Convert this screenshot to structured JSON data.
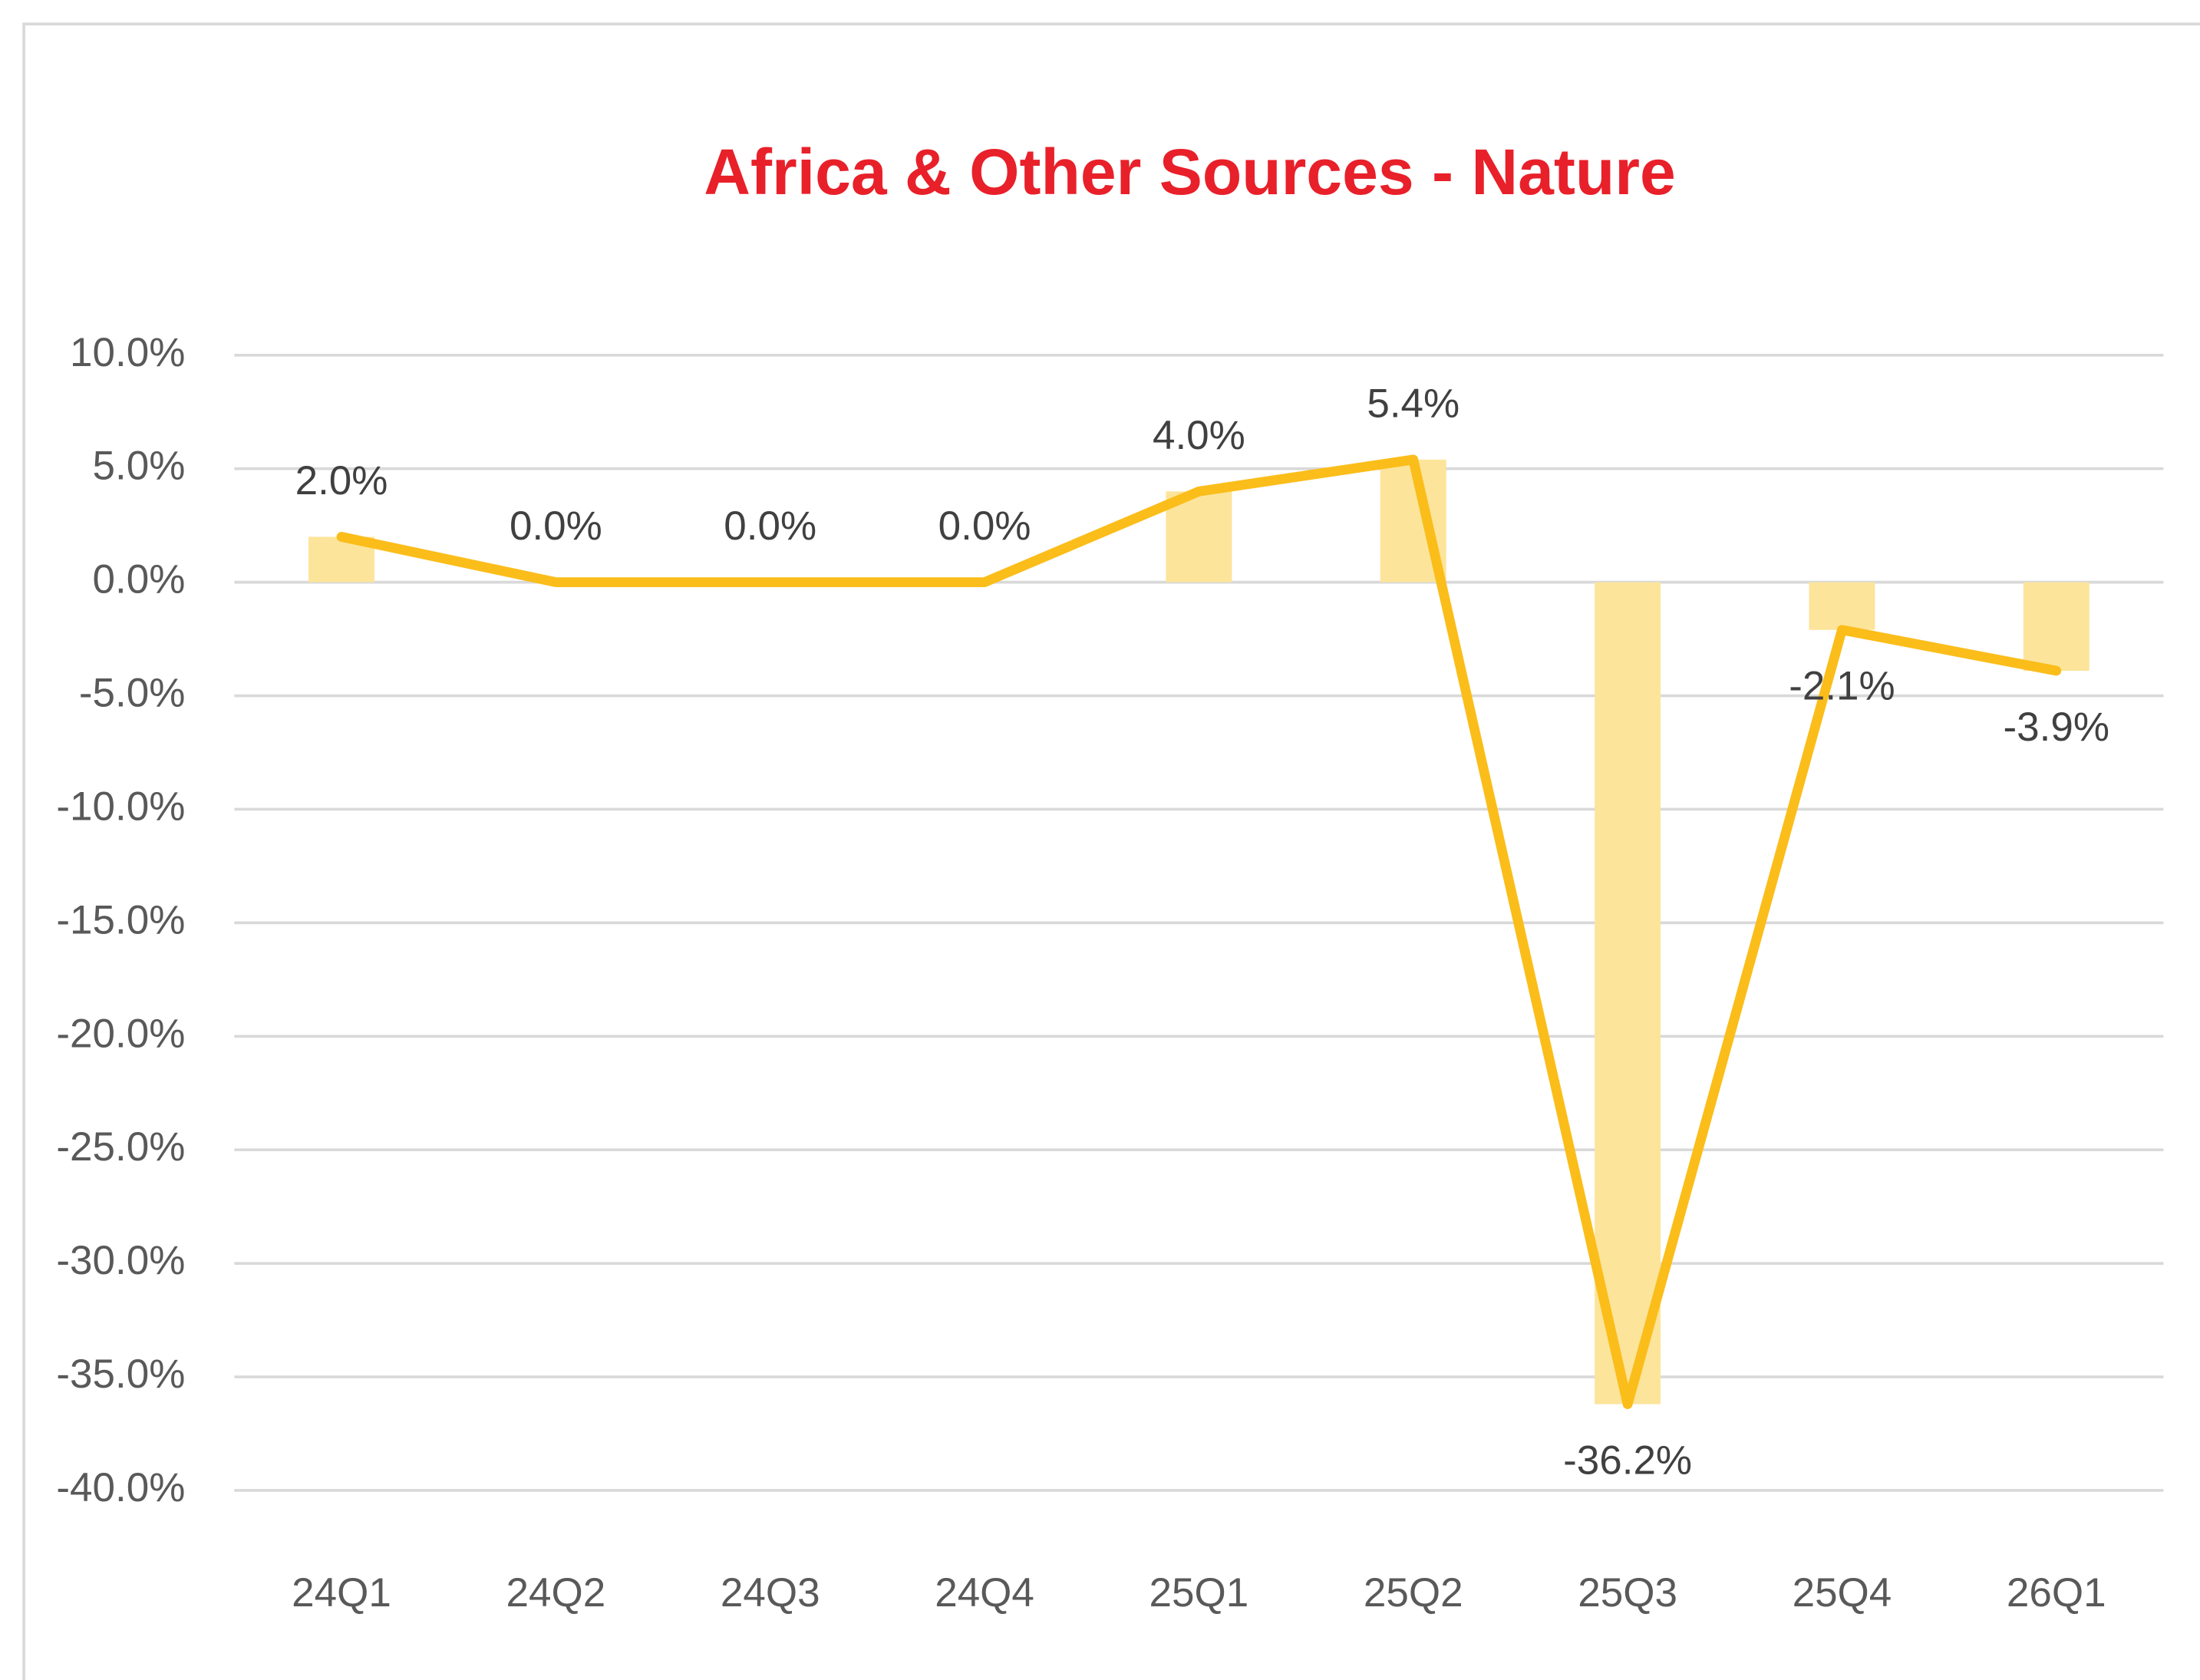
{
  "chart_data": {
    "type": "combo",
    "title": "Africa & Other Sources - Nature",
    "categories": [
      "24Q1",
      "24Q2",
      "24Q3",
      "24Q4",
      "25Q1",
      "25Q2",
      "25Q3",
      "25Q4",
      "26Q1"
    ],
    "series": [
      {
        "type": "bar",
        "color": "#fce49a",
        "values": [
          2.0,
          0.0,
          0.0,
          0.0,
          4.0,
          5.4,
          -36.2,
          -2.1,
          -3.9
        ]
      },
      {
        "type": "line",
        "color": "#fbbd1a",
        "values": [
          2.0,
          0.0,
          0.0,
          0.0,
          4.0,
          5.4,
          -36.2,
          -2.1,
          -3.9
        ],
        "value_labels": [
          "2.0%",
          "0.0%",
          "0.0%",
          "0.0%",
          "4.0%",
          "5.4%",
          "-36.2%",
          "-2.1%",
          "-3.9%"
        ]
      }
    ],
    "ylim": [
      -40,
      10
    ],
    "yticks": [
      {
        "value": 10,
        "label": "10.0%"
      },
      {
        "value": 5,
        "label": "5.0%"
      },
      {
        "value": 0,
        "label": "0.0%"
      },
      {
        "value": -5,
        "label": "-5.0%"
      },
      {
        "value": -10,
        "label": "-10.0%"
      },
      {
        "value": -15,
        "label": "-15.0%"
      },
      {
        "value": -20,
        "label": "-20.0%"
      },
      {
        "value": -25,
        "label": "-25.0%"
      },
      {
        "value": -30,
        "label": "-30.0%"
      },
      {
        "value": -35,
        "label": "-35.0%"
      },
      {
        "value": -40,
        "label": "-40.0%"
      }
    ],
    "grid": true
  }
}
